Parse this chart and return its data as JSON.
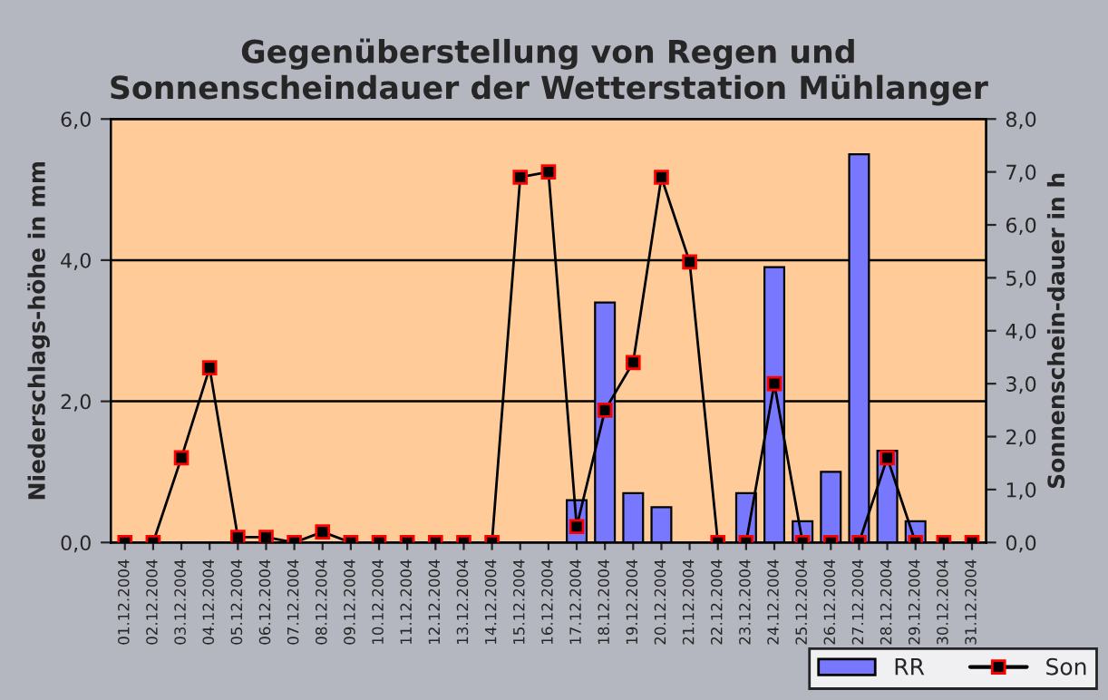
{
  "chart_data": {
    "type": "bar",
    "title": "Gegenüberstellung von Regen und\nSonnenscheindauer der Wetterstation Mühlanger",
    "ylabel": "Niederschlags-höhe in mm",
    "y2label": "Sonnenschein-dauer in h",
    "categories": [
      "01.12.2004",
      "02.12.2004",
      "03.12.2004",
      "04.12.2004",
      "05.12.2004",
      "06.12.2004",
      "07.12.2004",
      "08.12.2004",
      "09.12.2004",
      "10.12.2004",
      "11.12.2004",
      "12.12.2004",
      "13.12.2004",
      "14.12.2004",
      "15.12.2004",
      "16.12.2004",
      "17.12.2004",
      "18.12.2004",
      "19.12.2004",
      "20.12.2004",
      "21.12.2004",
      "22.12.2004",
      "23.12.2004",
      "24.12.2004",
      "25.12.2004",
      "26.12.2004",
      "27.12.2004",
      "28.12.2004",
      "29.12.2004",
      "30.12.2004",
      "31.12.2004"
    ],
    "series": [
      {
        "name": "RR",
        "color": "#7878ff",
        "values": [
          0,
          0,
          0,
          0,
          0,
          0,
          0,
          0,
          0,
          0,
          0,
          0,
          0,
          0,
          0,
          0,
          0.6,
          3.4,
          0.7,
          0.5,
          0,
          0,
          0.7,
          3.9,
          0.3,
          1.0,
          5.5,
          1.3,
          0.3,
          0,
          0
        ]
      },
      {
        "name": "Son",
        "type": "line",
        "axis": "y2",
        "color": "#000000",
        "marker": "square",
        "values": [
          0,
          0,
          1.6,
          3.3,
          0.1,
          0.1,
          0,
          0.2,
          0,
          0,
          0,
          0,
          0,
          0,
          6.9,
          7.0,
          0.3,
          2.5,
          3.4,
          6.9,
          5.3,
          0,
          0,
          3.0,
          0,
          0,
          0,
          1.6,
          0,
          0,
          0
        ]
      }
    ],
    "ylim": [
      0,
      6
    ],
    "yticks": [
      {
        "value": 0,
        "label": "0,0"
      },
      {
        "value": 2,
        "label": "2,0"
      },
      {
        "value": 4,
        "label": "4,0"
      },
      {
        "value": 6,
        "label": "6,0"
      }
    ],
    "y2lim": [
      0,
      8
    ],
    "y2ticks": [
      {
        "value": 0,
        "label": "0,0"
      },
      {
        "value": 1,
        "label": "1,0"
      },
      {
        "value": 2,
        "label": "2,0"
      },
      {
        "value": 3,
        "label": "3,0"
      },
      {
        "value": 4,
        "label": "4,0"
      },
      {
        "value": 5,
        "label": "5,0"
      },
      {
        "value": 6,
        "label": "6,0"
      },
      {
        "value": 7,
        "label": "7,0"
      },
      {
        "value": 8,
        "label": "8,0"
      }
    ],
    "grid": "y",
    "legend": "bottom right"
  }
}
